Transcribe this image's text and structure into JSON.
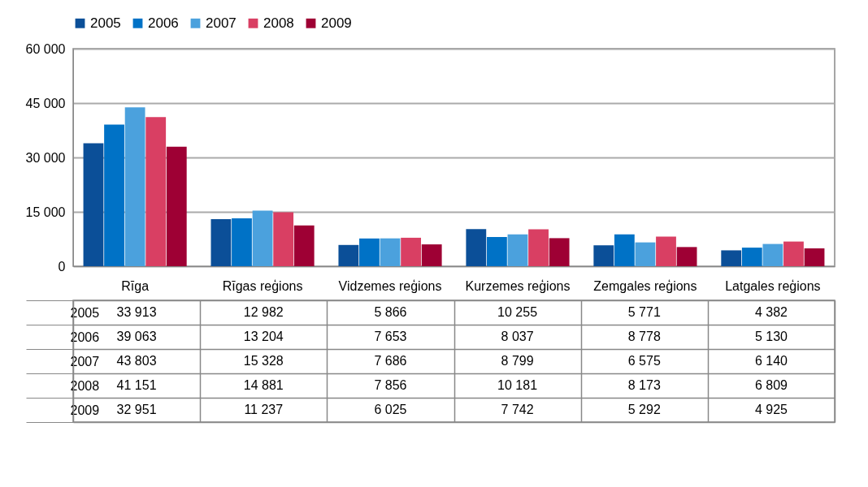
{
  "chart_data": {
    "type": "bar",
    "categories": [
      "Rīga",
      "Rīgas reģions",
      "Vidzemes reģions",
      "Kurzemes reģions",
      "Zemgales reģions",
      "Latgales reģions"
    ],
    "series": [
      {
        "name": "2005",
        "color": "#0b4f98",
        "values": [
          33913,
          12982,
          5866,
          10255,
          5771,
          4382
        ],
        "value_labels": [
          "33 913",
          "12 982",
          "5 866",
          "10 255",
          "5 771",
          "4 382"
        ]
      },
      {
        "name": "2006",
        "color": "#0072c6",
        "values": [
          39063,
          13204,
          7653,
          8037,
          8778,
          5130
        ],
        "value_labels": [
          "39 063",
          "13 204",
          "7 653",
          "8 037",
          "8 778",
          "5 130"
        ]
      },
      {
        "name": "2007",
        "color": "#4ba1dd",
        "values": [
          43803,
          15328,
          7686,
          8799,
          6575,
          6140
        ],
        "value_labels": [
          "43 803",
          "15 328",
          "7 686",
          "8 799",
          "6 575",
          "6 140"
        ]
      },
      {
        "name": "2008",
        "color": "#d93f63",
        "values": [
          41151,
          14881,
          7856,
          10181,
          8173,
          6809
        ],
        "value_labels": [
          "41 151",
          "14 881",
          "7 856",
          "10 181",
          "8 173",
          "6 809"
        ]
      },
      {
        "name": "2009",
        "color": "#9e0034",
        "values": [
          32951,
          11237,
          6025,
          7742,
          5292,
          4925
        ],
        "value_labels": [
          "32 951",
          "11 237",
          "6 025",
          "7 742",
          "5 292",
          "4 925"
        ]
      }
    ],
    "ylim": [
      0,
      60000
    ],
    "yticks": [
      {
        "value": 0,
        "label": "0"
      },
      {
        "value": 15000,
        "label": "15 000"
      },
      {
        "value": 30000,
        "label": "30 000"
      },
      {
        "value": 45000,
        "label": "45 000"
      },
      {
        "value": 60000,
        "label": "60 000"
      }
    ],
    "grid": "y",
    "legend": "top"
  }
}
